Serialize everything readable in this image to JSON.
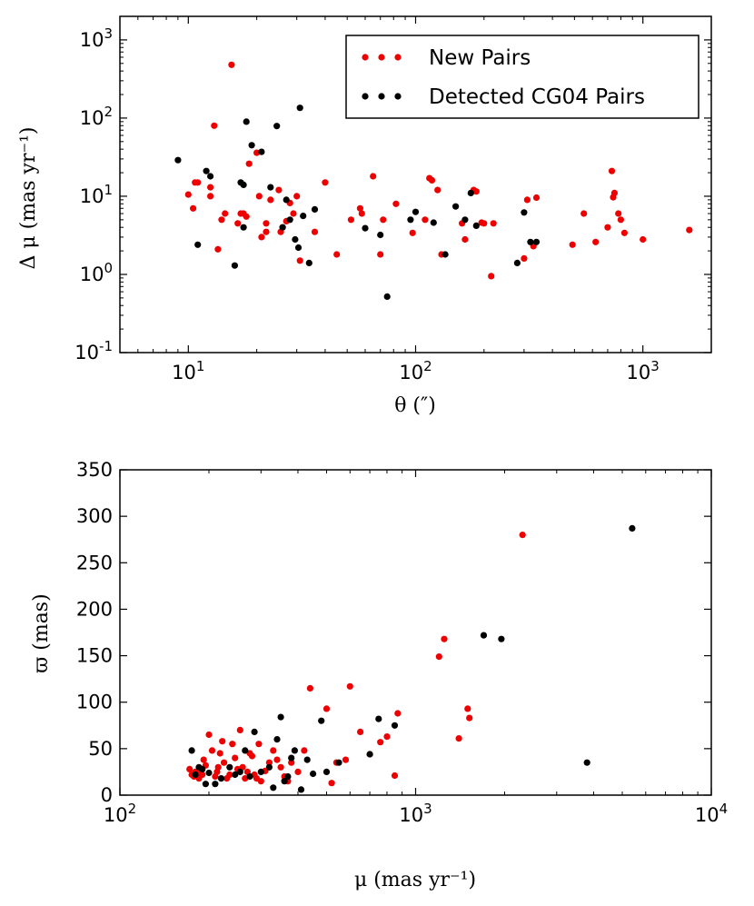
{
  "colors": {
    "new": "#ee0000",
    "detected": "#000000",
    "axis": "#000000",
    "background": "#ffffff"
  },
  "chart_data": [
    {
      "type": "scatter",
      "xscale": "log",
      "yscale": "log",
      "xlim": [
        5,
        2000
      ],
      "ylim": [
        0.1,
        2000
      ],
      "xlabel": "θ (″)",
      "ylabel": "Δ μ (mas yr⁻¹)",
      "xticks": [
        {
          "value": 10,
          "base": "10",
          "exp": "1"
        },
        {
          "value": 100,
          "base": "10",
          "exp": "2"
        },
        {
          "value": 1000,
          "base": "10",
          "exp": "3"
        }
      ],
      "yticks": [
        {
          "value": 0.1,
          "base": "10",
          "exp": "-1"
        },
        {
          "value": 1,
          "base": "10",
          "exp": "0"
        },
        {
          "value": 10,
          "base": "10",
          "exp": "1"
        },
        {
          "value": 100,
          "base": "10",
          "exp": "2"
        },
        {
          "value": 1000,
          "base": "10",
          "exp": "3"
        }
      ],
      "legend": {
        "position": "top-right",
        "entries": [
          "New Pairs",
          "Detected CG04 Pairs"
        ]
      },
      "series": [
        {
          "name": "New Pairs",
          "color": "#ee0000",
          "x": [
            15.5,
            13,
            10,
            10.5,
            10.7,
            11,
            12.5,
            12.5,
            13.5,
            14,
            14.5,
            16.5,
            17,
            17.5,
            18,
            18.5,
            20,
            20.5,
            21,
            22,
            22,
            23,
            25,
            25.5,
            26,
            27,
            28,
            29,
            30,
            31,
            36,
            40,
            45,
            52,
            57,
            58,
            65,
            70,
            72,
            82,
            97,
            110,
            115,
            118,
            125,
            130,
            160,
            165,
            180,
            185,
            195,
            200,
            215,
            220,
            300,
            310,
            330,
            340,
            490,
            550,
            620,
            700,
            730,
            740,
            750,
            780,
            800,
            830,
            1000,
            1600
          ],
          "y": [
            480,
            80,
            10.5,
            7,
            15,
            15,
            13,
            10,
            2.1,
            5,
            6,
            4.5,
            6,
            6,
            5.5,
            26,
            36,
            10,
            3,
            4.5,
            3.5,
            9,
            12,
            3.5,
            4,
            4.8,
            8.2,
            6,
            10,
            1.5,
            3.5,
            15,
            1.8,
            5,
            7,
            6,
            18,
            1.8,
            5,
            8,
            3.4,
            5,
            17,
            16,
            12,
            1.8,
            4.5,
            2.8,
            12,
            11.5,
            4.6,
            4.5,
            0.95,
            4.5,
            1.6,
            9,
            2.3,
            9.6,
            2.4,
            6,
            2.6,
            4,
            21,
            9.7,
            11,
            6,
            5,
            3.4,
            2.8,
            3.7
          ]
        },
        {
          "name": "Detected CG04 Pairs",
          "color": "#000000",
          "x": [
            9,
            11,
            12,
            12.5,
            16,
            17,
            17.5,
            17.5,
            18,
            19,
            21,
            23,
            24.5,
            26,
            27,
            28,
            29.5,
            30.5,
            31,
            32,
            34,
            36,
            60,
            70,
            75,
            95,
            100,
            120,
            135,
            150,
            165,
            175,
            185,
            280,
            300,
            320,
            340
          ],
          "y": [
            29,
            2.4,
            21,
            18,
            1.3,
            15,
            14,
            4,
            90,
            45,
            37,
            13,
            79,
            4,
            9,
            5,
            2.8,
            2.2,
            135,
            5.6,
            1.4,
            6.8,
            3.9,
            3.2,
            0.52,
            5,
            6.3,
            4.6,
            1.8,
            7.4,
            5,
            11,
            4.2,
            1.4,
            6.2,
            2.6,
            2.6
          ]
        }
      ]
    },
    {
      "type": "scatter",
      "xscale": "log",
      "yscale": "linear",
      "xlim": [
        100,
        10000
      ],
      "ylim": [
        0,
        350
      ],
      "xlabel": "μ (mas yr⁻¹)",
      "ylabel": "ϖ (mas)",
      "xticks": [
        {
          "value": 100,
          "base": "10",
          "exp": "2"
        },
        {
          "value": 1000,
          "base": "10",
          "exp": "3"
        },
        {
          "value": 10000,
          "base": "10",
          "exp": "4"
        }
      ],
      "yticks": [
        {
          "value": 0,
          "label": "0"
        },
        {
          "value": 50,
          "label": "50"
        },
        {
          "value": 100,
          "label": "100"
        },
        {
          "value": 150,
          "label": "150"
        },
        {
          "value": 200,
          "label": "200"
        },
        {
          "value": 250,
          "label": "250"
        },
        {
          "value": 300,
          "label": "300"
        },
        {
          "value": 350,
          "label": "350"
        }
      ],
      "series": [
        {
          "name": "New Pairs",
          "color": "#ee0000",
          "x": [
            172,
            175,
            178,
            180,
            185,
            188,
            190,
            192,
            195,
            200,
            205,
            210,
            213,
            215,
            218,
            222,
            225,
            230,
            235,
            240,
            245,
            250,
            255,
            260,
            265,
            270,
            275,
            280,
            285,
            290,
            295,
            300,
            310,
            320,
            330,
            340,
            350,
            360,
            370,
            380,
            400,
            420,
            440,
            500,
            520,
            540,
            580,
            600,
            650,
            700,
            760,
            800,
            850,
            870,
            1200,
            1250,
            1400,
            1500,
            1520,
            2300
          ],
          "y": [
            28,
            22,
            20,
            25,
            18,
            24,
            22,
            38,
            32,
            65,
            48,
            20,
            25,
            30,
            45,
            58,
            35,
            18,
            22,
            55,
            40,
            28,
            70,
            30,
            18,
            25,
            45,
            42,
            22,
            18,
            55,
            15,
            26,
            35,
            48,
            38,
            30,
            20,
            15,
            35,
            25,
            48,
            115,
            93,
            13,
            35,
            38,
            117,
            68,
            44,
            57,
            63,
            21,
            88,
            149,
            168,
            61,
            93,
            83,
            280
          ]
        },
        {
          "name": "Detected CG04 Pairs",
          "color": "#000000",
          "x": [
            175,
            180,
            185,
            190,
            195,
            200,
            210,
            220,
            235,
            245,
            255,
            265,
            275,
            285,
            300,
            320,
            330,
            340,
            350,
            360,
            370,
            380,
            390,
            410,
            430,
            450,
            480,
            500,
            550,
            700,
            750,
            850,
            1700,
            1950,
            3800,
            5400
          ],
          "y": [
            48,
            22,
            30,
            28,
            12,
            24,
            12,
            18,
            30,
            22,
            25,
            48,
            20,
            68,
            25,
            30,
            8,
            60,
            84,
            15,
            20,
            40,
            48,
            6,
            38,
            23,
            80,
            25,
            35,
            44,
            82,
            75,
            172,
            168,
            35,
            287
          ]
        }
      ]
    }
  ]
}
